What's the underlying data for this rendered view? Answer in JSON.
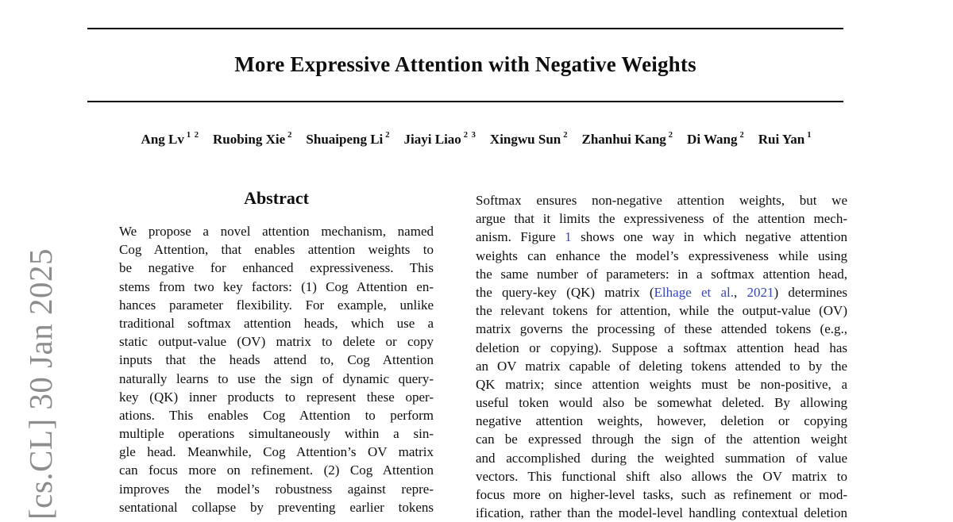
{
  "page": {
    "background": "#ffffff",
    "text_color": "#0e0e0e",
    "link_color": "#3845b8",
    "watermark_color": "#8d8d8d"
  },
  "header": {
    "title": "More Expressive Attention with Negative Weights",
    "authors": [
      {
        "name": "Ang Lv",
        "sup": "1 2"
      },
      {
        "name": "Ruobing Xie",
        "sup": "2"
      },
      {
        "name": "Shuaipeng Li",
        "sup": "2"
      },
      {
        "name": "Jiayi Liao",
        "sup": "2 3"
      },
      {
        "name": "Xingwu Sun",
        "sup": "2"
      },
      {
        "name": "Zhanhui Kang",
        "sup": "2"
      },
      {
        "name": "Di Wang",
        "sup": "2"
      },
      {
        "name": "Rui Yan",
        "sup": "1"
      }
    ]
  },
  "watermark": {
    "text": "[cs.CL]  30 Jan 2025"
  },
  "abstract": {
    "heading": "Abstract",
    "lines": [
      "We propose a novel attention mechanism, named",
      "Cog Attention, that enables attention weights to",
      "be negative for enhanced expressiveness. This",
      "stems from two key factors: (1) Cog Attention en-",
      "hances parameter flexibility. For example, unlike",
      "traditional softmax attention heads, which use a",
      "static output-value (OV) matrix to delete or copy",
      "inputs that the heads attend to, Cog Attention",
      "naturally learns to use the sign of dynamic query-",
      "key (QK) inner products to represent these oper-",
      "ations. This enables Cog Attention to perform",
      "multiple operations simultaneously within a sin-",
      "gle head. Meanwhile, Cog Attention’s OV matrix",
      "can focus more on refinement. (2) Cog Attention",
      "improves the model’s robustness against repre-",
      "sentational collapse by preventing earlier tokens"
    ]
  },
  "intro": {
    "lines": [
      [
        {
          "t": "Softmax ensures non-negative attention weights, but we"
        }
      ],
      [
        {
          "t": "argue that it limits the expressiveness of the attention mech-"
        }
      ],
      [
        {
          "t": "anism. Figure "
        },
        {
          "t": "1",
          "link": true,
          "name": "figure-1-reference"
        },
        {
          "t": " shows one way in which negative attention"
        }
      ],
      [
        {
          "t": "weights can enhance the model’s expressiveness while using"
        }
      ],
      [
        {
          "t": "the same number of parameters: in a softmax attention head,"
        }
      ],
      [
        {
          "t": "the query-key (QK) matrix ("
        },
        {
          "t": "Elhage et al.",
          "link": true,
          "name": "citation-elhage"
        },
        {
          "t": ", "
        },
        {
          "t": "2021",
          "link": true,
          "name": "citation-elhage-year"
        },
        {
          "t": ") determines"
        }
      ],
      [
        {
          "t": "the relevant tokens for attention, while the output-value (OV)"
        }
      ],
      [
        {
          "t": "matrix governs the processing of these attended tokens (e.g.,"
        }
      ],
      [
        {
          "t": "deletion or copying). Suppose a softmax attention head has"
        }
      ],
      [
        {
          "t": "an OV matrix capable of deleting tokens attended to by the"
        }
      ],
      [
        {
          "t": "QK matrix; since attention weights must be non-positive, a"
        }
      ],
      [
        {
          "t": "useful token would also be somewhat deleted. By allowing"
        }
      ],
      [
        {
          "t": "negative attention weights, however, deletion or copying"
        }
      ],
      [
        {
          "t": "can be expressed through the sign of the attention weight"
        }
      ],
      [
        {
          "t": "and accomplished during the weighted summation of value"
        }
      ],
      [
        {
          "t": "vectors. This functional shift also allows the OV matrix to"
        }
      ],
      [
        {
          "t": "focus more on higher-level tasks, such as refinement or mod-"
        }
      ],
      [
        {
          "t": "ification, rather than the model-level handling contextual deletion"
        }
      ]
    ]
  }
}
